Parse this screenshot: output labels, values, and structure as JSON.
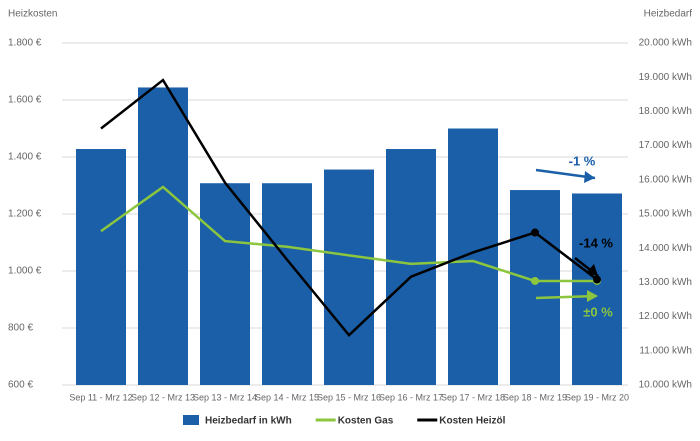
{
  "chart_data": {
    "type": "bar-line",
    "y_label": "Heizkosten",
    "y2_label": "Heizbedarf",
    "categories": [
      "Sep 11 - Mrz 12",
      "Sep 12 - Mrz 13",
      "Sep 13 - Mrz 14",
      "Sep 14 - Mrz 15",
      "Sep 15 - Mrz 16",
      "Sep 16 - Mrz 17",
      "Sep 17 - Mrz 18",
      "Sep 18 - Mrz 19",
      "Sep 19 - Mrz 20"
    ],
    "ylim": [
      600,
      1800
    ],
    "yticks": [
      {
        "value": 600,
        "label": "600 €"
      },
      {
        "value": 800,
        "label": "800 €"
      },
      {
        "value": 1000,
        "label": "1.000 €"
      },
      {
        "value": 1200,
        "label": "1.200 €"
      },
      {
        "value": 1400,
        "label": "1.400 €"
      },
      {
        "value": 1600,
        "label": "1.600 €"
      },
      {
        "value": 1800,
        "label": "1.800 €"
      }
    ],
    "y2lim": [
      10000,
      20000
    ],
    "y2ticks": [
      {
        "value": 10000,
        "label": "10.000 kWh"
      },
      {
        "value": 11000,
        "label": "11.000 kWh"
      },
      {
        "value": 12000,
        "label": "12.000 kWh"
      },
      {
        "value": 13000,
        "label": "13.000 kWh"
      },
      {
        "value": 14000,
        "label": "14.000 kWh"
      },
      {
        "value": 15000,
        "label": "15.000 kWh"
      },
      {
        "value": 16000,
        "label": "16.000 kWh"
      },
      {
        "value": 17000,
        "label": "17.000 kWh"
      },
      {
        "value": 18000,
        "label": "18.000 kWh"
      },
      {
        "value": 19000,
        "label": "19.000 kWh"
      },
      {
        "value": 20000,
        "label": "20.000 kWh"
      }
    ],
    "grid": true,
    "series": [
      {
        "name": "Heizbedarf in kWh",
        "kind": "bar",
        "axis": "y2",
        "color": "#1a5fa8",
        "values": [
          16900,
          18700,
          15900,
          15900,
          16300,
          16900,
          17500,
          15700,
          15600
        ]
      },
      {
        "name": "Kosten Gas",
        "kind": "line",
        "axis": "y",
        "color": "#8cc63f",
        "values": [
          1140,
          1295,
          1105,
          1085,
          1055,
          1025,
          1035,
          965,
          965
        ]
      },
      {
        "name": "Kosten Heizöl",
        "kind": "line",
        "axis": "y",
        "color": "#000000",
        "values": [
          1500,
          1670,
          1310,
          1040,
          775,
          980,
          1065,
          1135,
          970
        ]
      }
    ],
    "annotations": [
      {
        "text": "-1 %",
        "color": "#1a5fa8"
      },
      {
        "text": "-14 %",
        "color": "#000000"
      },
      {
        "text": "±0 %",
        "color": "#8cc63f"
      }
    ]
  }
}
